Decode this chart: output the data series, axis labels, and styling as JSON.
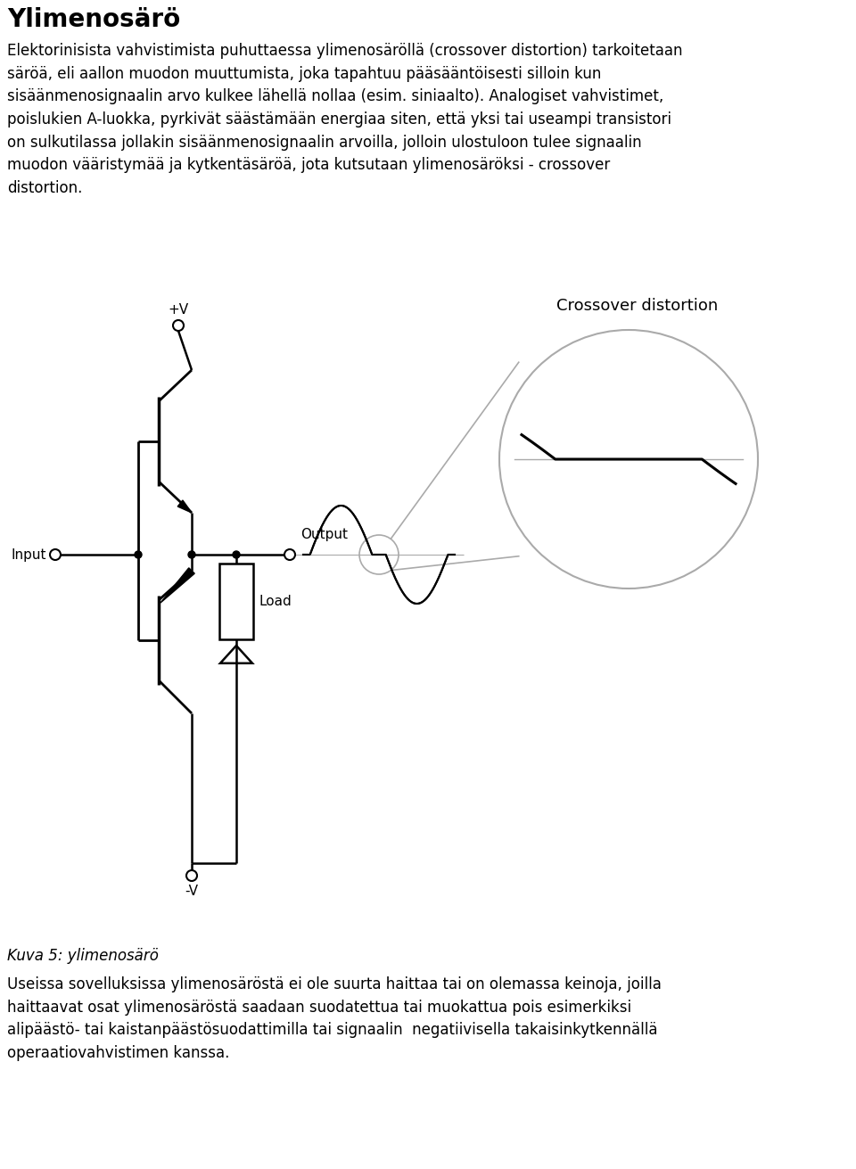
{
  "title": "Ylimenosärö",
  "title_fontsize": 20,
  "body_text1": "Elektorinisista vahvistimista puhuttaessa ylimenosäröllä (crossover distortion) tarkoitetaan\nsäröä, eli aallon muodon muuttumista, joka tapahtuu pääsääntöisesti silloin kun\nsisäänmenosignaalin arvo kulkee lähellä nollaa (esim. siniaalto). Analogiset vahvistimet,\npoislukien A-luokka, pyrkivät säästämään energiaa siten, että yksi tai useampi transistori\non sulkutilassa jollakin sisäänmenosignaalin arvoilla, jolloin ulostuloon tulee signaalin\nmuodon vääristymää ja kytkentäsäröä, jota kutsutaan ylimenosäröksi - crossover\ndistortion.",
  "body_text1_fontsize": 12,
  "caption": "Kuva 5: ylimenosärö",
  "caption_fontsize": 12,
  "body_text2": "Useissa sovelluksissa ylimenosäröstä ei ole suurta haittaa tai on olemassa keinoja, joilla\nhaittaavat osat ylimenosäröstä saadaan suodatettua tai muokattua pois esimerkiksi\nalipäästö- tai kaistanpäästösuodattimilla tai signaalin  negatiivisella takaisinkytkennällä\noperaatiovahvistimen kanssa.",
  "body_text2_fontsize": 12,
  "crossover_label": "Crossover distortion",
  "output_label": "Output",
  "input_label": "Input",
  "load_label": "Load",
  "plus_v_label": "+V",
  "minus_v_label": "-V",
  "bg_color": "#ffffff",
  "line_color": "#000000",
  "gray_color": "#aaaaaa"
}
